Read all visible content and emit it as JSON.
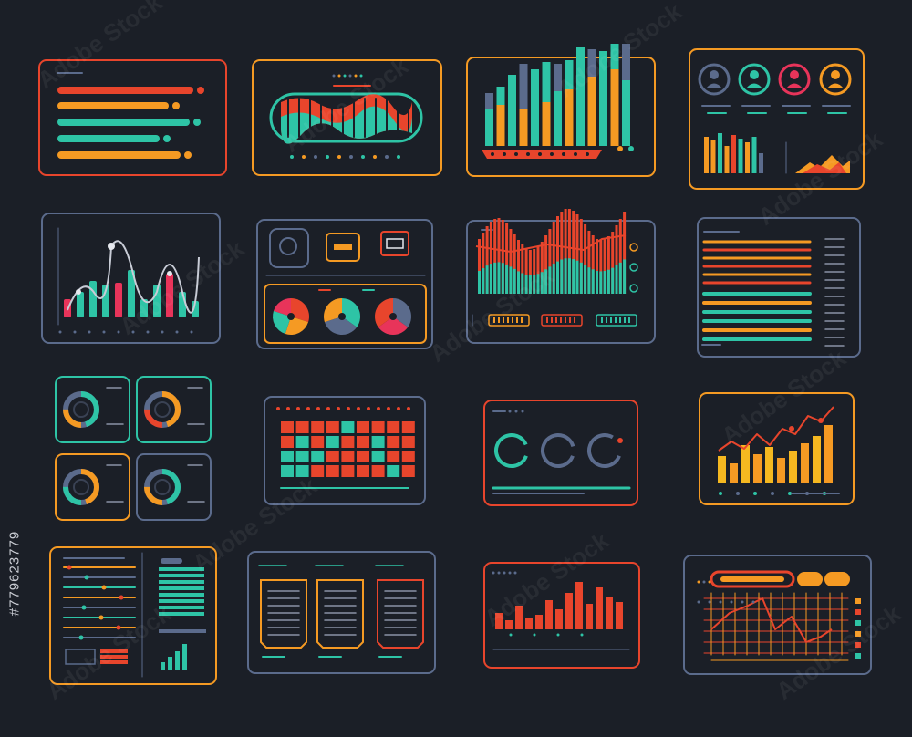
{
  "watermark": {
    "brand": "Adobe Stock"
  },
  "stock_id": "#779623779",
  "colors": {
    "background": "#1b1f27",
    "red": "#e8452c",
    "orange": "#f59a23",
    "teal": "#2ec4a6",
    "slate": "#5b6b8c",
    "pink": "#e8345a",
    "yellow": "#f5b820"
  },
  "icons": [
    "user-icon",
    "chat-bubble-icon",
    "calendar-icon",
    "document-icon"
  ]
}
